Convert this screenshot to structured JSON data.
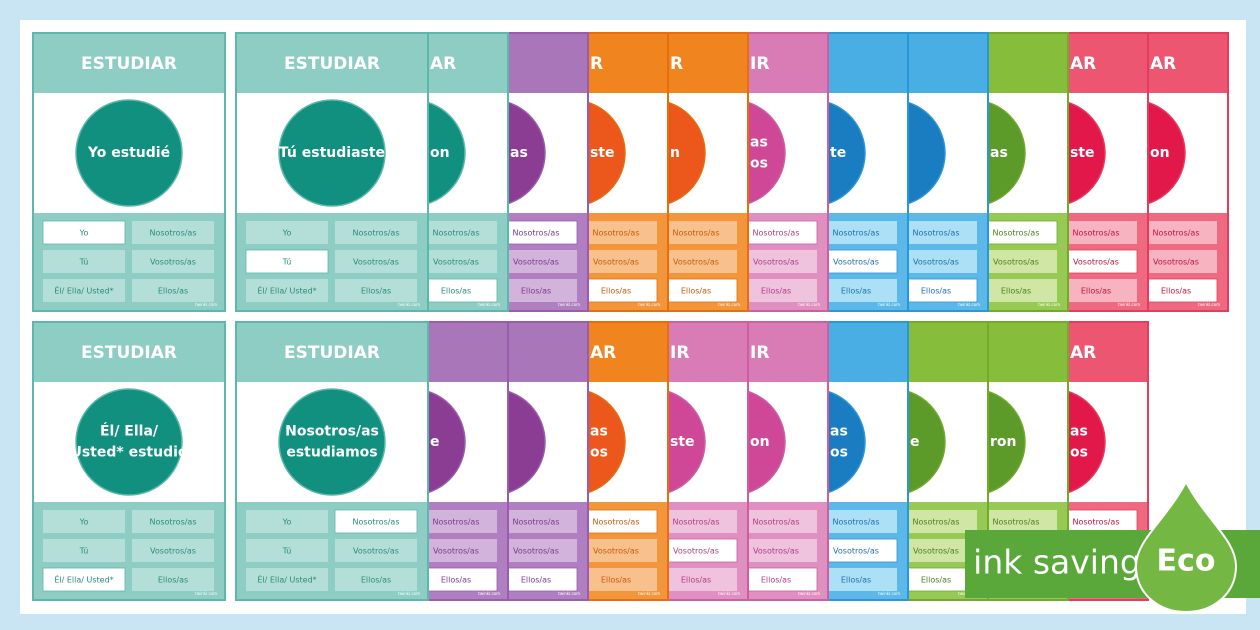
{
  "pronouns": [
    "Yo",
    "Nosotros/as",
    "Tú",
    "Vosotros/as",
    "Él/ Ella/ Usted*",
    "Ellos/as"
  ],
  "footer_text": "twinkl.com",
  "palettes": {
    "teal": {
      "header": "#8ecdc4",
      "circle": "#12907f",
      "footer": "#8ecdc4",
      "cell": "#b4dfd9",
      "text": "#2a8a7d",
      "border": "#5cb8ab"
    },
    "purple": {
      "header": "#a876b9",
      "circle": "#8a3d93",
      "footer": "#b07fc1",
      "cell": "#d2b3dc",
      "text": "#7a3a88",
      "border": "#9a5cac"
    },
    "orange": {
      "header": "#f0841e",
      "circle": "#ec571c",
      "footer": "#f3953a",
      "cell": "#f8c08c",
      "text": "#c75a0c",
      "border": "#e56e0e"
    },
    "pink": {
      "header": "#d97bb4",
      "circle": "#cf4897",
      "footer": "#df8fc0",
      "cell": "#efc2de",
      "text": "#b03c80",
      "border": "#cb5fa1"
    },
    "blue": {
      "header": "#49aee3",
      "circle": "#1a7cc1",
      "footer": "#5bb8e8",
      "cell": "#ace0f7",
      "text": "#1d6fa8",
      "border": "#2c97d6"
    },
    "green": {
      "header": "#86bd3b",
      "circle": "#5c9a2a",
      "footer": "#97c955",
      "cell": "#cfe6a5",
      "text": "#4b7f1e",
      "border": "#72aa2b"
    },
    "red": {
      "header": "#ec5670",
      "circle": "#e2184a",
      "footer": "#ef6a80",
      "cell": "#f7b3c0",
      "text": "#c0143f",
      "border": "#e43c5c"
    }
  },
  "front_cards": [
    {
      "row": 0,
      "palette": "teal",
      "header": "ESTUDIAR",
      "circle": [
        "Yo estudié"
      ],
      "selected": 0
    },
    {
      "row": 0,
      "palette": "teal",
      "header": "ESTUDIAR",
      "circle": [
        "Tú estudiaste"
      ],
      "selected": 2
    },
    {
      "row": 1,
      "palette": "teal",
      "header": "ESTUDIAR",
      "circle": [
        "Él/ Ella/",
        "Usted* estudió"
      ],
      "selected": 4
    },
    {
      "row": 1,
      "palette": "teal",
      "header": "ESTUDIAR",
      "circle": [
        "Nosotros/as",
        "estudiamos"
      ],
      "selected": 1
    }
  ],
  "back_rows": [
    [
      {
        "palette": "teal",
        "header": "AR",
        "circle": [
          "on"
        ],
        "selected": 5
      },
      {
        "palette": "purple",
        "header": "",
        "circle": [
          "as"
        ],
        "selected": 1
      },
      {
        "palette": "orange",
        "header": "R",
        "circle": [
          "ste"
        ],
        "selected": 5
      },
      {
        "palette": "orange",
        "header": "R",
        "circle": [
          "n"
        ],
        "selected": 5
      },
      {
        "palette": "pink",
        "header": "IR",
        "circle": [
          "as",
          "os"
        ],
        "selected": 1
      },
      {
        "palette": "blue",
        "header": "",
        "circle": [
          "te"
        ],
        "selected": 3
      },
      {
        "palette": "blue",
        "header": "",
        "circle": [
          ""
        ],
        "selected": 5
      },
      {
        "palette": "green",
        "header": "",
        "circle": [
          "as"
        ],
        "selected": 1
      },
      {
        "palette": "red",
        "header": "AR",
        "circle": [
          "ste"
        ],
        "selected": 3
      },
      {
        "palette": "red",
        "header": "AR",
        "circle": [
          "on"
        ],
        "selected": 5
      }
    ],
    [
      {
        "palette": "purple",
        "header": "",
        "circle": [
          "e"
        ],
        "selected": 5
      },
      {
        "palette": "purple",
        "header": "",
        "circle": [
          ""
        ],
        "selected": 5
      },
      {
        "palette": "orange",
        "header": "AR",
        "circle": [
          "as",
          "os"
        ],
        "selected": 1
      },
      {
        "palette": "pink",
        "header": "IR",
        "circle": [
          "ste"
        ],
        "selected": 3
      },
      {
        "palette": "pink",
        "header": "IR",
        "circle": [
          "on"
        ],
        "selected": 5
      },
      {
        "palette": "blue",
        "header": "",
        "circle": [
          "as",
          "os"
        ],
        "selected": 3
      },
      {
        "palette": "green",
        "header": "",
        "circle": [
          "e"
        ],
        "selected": 5
      },
      {
        "palette": "green",
        "header": "",
        "circle": [
          "ron"
        ],
        "selected": 5
      },
      {
        "palette": "red",
        "header": "AR",
        "circle": [
          "as",
          "os"
        ],
        "selected": 1
      }
    ]
  ],
  "badge": {
    "text": "ink saving",
    "eco": "Eco"
  }
}
